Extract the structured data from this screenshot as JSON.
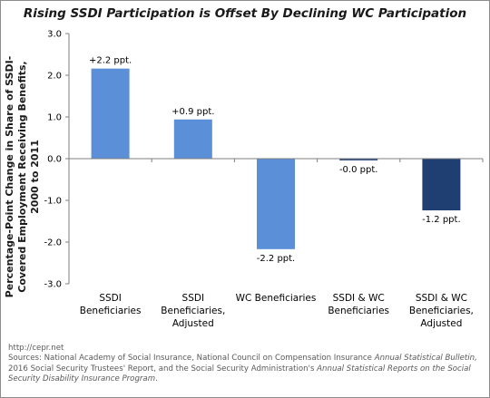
{
  "chart_data": {
    "type": "bar",
    "title": "Rising SSDI Participation is Offset By Declining  WC Participation",
    "ylabel": "Percentage-Point Change in Share of SSDI-Covered Employment Receiving Benefits, 2000 to 2011",
    "xlabel": "",
    "ylim": [
      -3.0,
      3.0
    ],
    "ytick_labels": [
      "3.0",
      "2.0",
      "1.0",
      "0.0",
      "-1.0",
      "-2.0",
      "-3.0"
    ],
    "ytick_values": [
      3.0,
      2.0,
      1.0,
      0.0,
      -1.0,
      -2.0,
      -3.0
    ],
    "categories": [
      [
        "SSDI",
        "Beneficiaries"
      ],
      [
        "SSDI",
        "Beneficiaries,",
        "Adjusted"
      ],
      [
        "WC Beneficiaries"
      ],
      [
        "SSDI & WC",
        "Beneficiaries"
      ],
      [
        "SSDI & WC",
        "Beneficiaries,",
        "Adjusted"
      ]
    ],
    "values": [
      2.16,
      0.94,
      -2.17,
      -0.04,
      -1.24
    ],
    "data_labels": [
      "+2.2 ppt.",
      "+0.9 ppt.",
      "-2.2 ppt.",
      "-0.0 ppt.",
      "-1.2 ppt."
    ],
    "colors": [
      "#5b8fd8",
      "#5b8fd8",
      "#5b8fd8",
      "#1f3f73",
      "#1f3f73"
    ],
    "grid": false,
    "legend": "none"
  },
  "footer": {
    "url": "http://cepr.net",
    "sources_lead": "Sources: National Academy of Social Insurance, National Council on Compensation Insurance ",
    "sources_ital1": "Annual Statistical Bulletin,",
    "sources_mid": "2016 Social Security Trustees' Report, and the Social Security Administration's ",
    "sources_ital2": "Annual Statistical Reports on the Social Security Disability Insurance Program",
    "sources_end": "."
  },
  "colors": {
    "axis": "#7f7f7f",
    "text": "#1a1a1a"
  }
}
